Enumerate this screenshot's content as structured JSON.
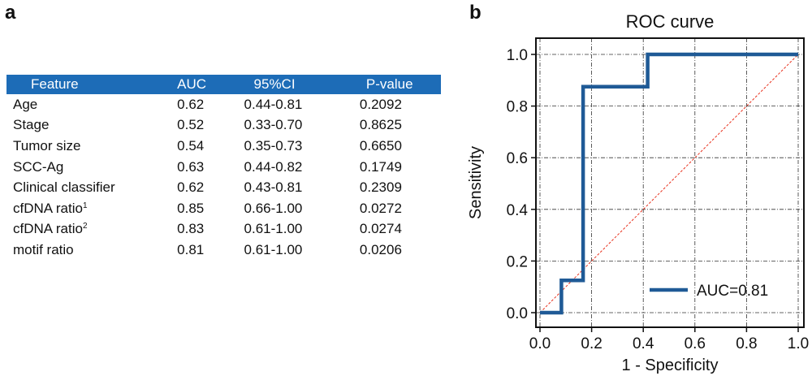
{
  "panel_a": {
    "letter": "a",
    "table": {
      "headers": [
        "Feature",
        "AUC",
        "95%CI",
        "P-value"
      ],
      "rows": [
        {
          "feature": "Age",
          "sup": "",
          "auc": "0.62",
          "ci": "0.44-0.81",
          "p": "0.2092"
        },
        {
          "feature": "Stage",
          "sup": "",
          "auc": "0.52",
          "ci": "0.33-0.70",
          "p": "0.8625"
        },
        {
          "feature": "Tumor size",
          "sup": "",
          "auc": "0.54",
          "ci": "0.35-0.73",
          "p": "0.6650"
        },
        {
          "feature": "SCC-Ag",
          "sup": "",
          "auc": "0.63",
          "ci": "0.44-0.82",
          "p": "0.1749"
        },
        {
          "feature": "Clinical classifier",
          "sup": "",
          "auc": "0.62",
          "ci": "0.43-0.81",
          "p": "0.2309"
        },
        {
          "feature": "cfDNA ratio",
          "sup": "1",
          "auc": "0.85",
          "ci": "0.66-1.00",
          "p": "0.0272"
        },
        {
          "feature": "cfDNA ratio",
          "sup": "2",
          "auc": "0.83",
          "ci": "0.61-1.00",
          "p": "0.0274"
        },
        {
          "feature": "motif ratio",
          "sup": "",
          "auc": "0.81",
          "ci": "0.61-1.00",
          "p": "0.0206"
        }
      ],
      "header_color": "#1d6cb7"
    }
  },
  "panel_b": {
    "letter": "b"
  },
  "chart_data": {
    "type": "line",
    "title": "ROC curve",
    "xlabel": "1 - Specificity",
    "ylabel": "Sensitivity",
    "xlim": [
      0,
      1
    ],
    "ylim": [
      0,
      1
    ],
    "xticks": [
      "0.0",
      "0.2",
      "0.4",
      "0.6",
      "0.8",
      "1.0"
    ],
    "yticks": [
      "0.0",
      "0.2",
      "0.4",
      "0.6",
      "0.8",
      "1.0"
    ],
    "grid": true,
    "legend_position": "lower-right",
    "series": [
      {
        "name": "AUC=0.81",
        "color": "#1f5a96",
        "x": [
          0.0,
          0.083,
          0.083,
          0.167,
          0.167,
          0.417,
          0.417,
          1.0
        ],
        "y": [
          0.0,
          0.0,
          0.125,
          0.125,
          0.875,
          0.875,
          1.0,
          1.0
        ]
      }
    ],
    "reference_line": {
      "x": [
        0,
        1
      ],
      "y": [
        0,
        1
      ],
      "color": "#e8321e",
      "style": "dashed"
    }
  }
}
